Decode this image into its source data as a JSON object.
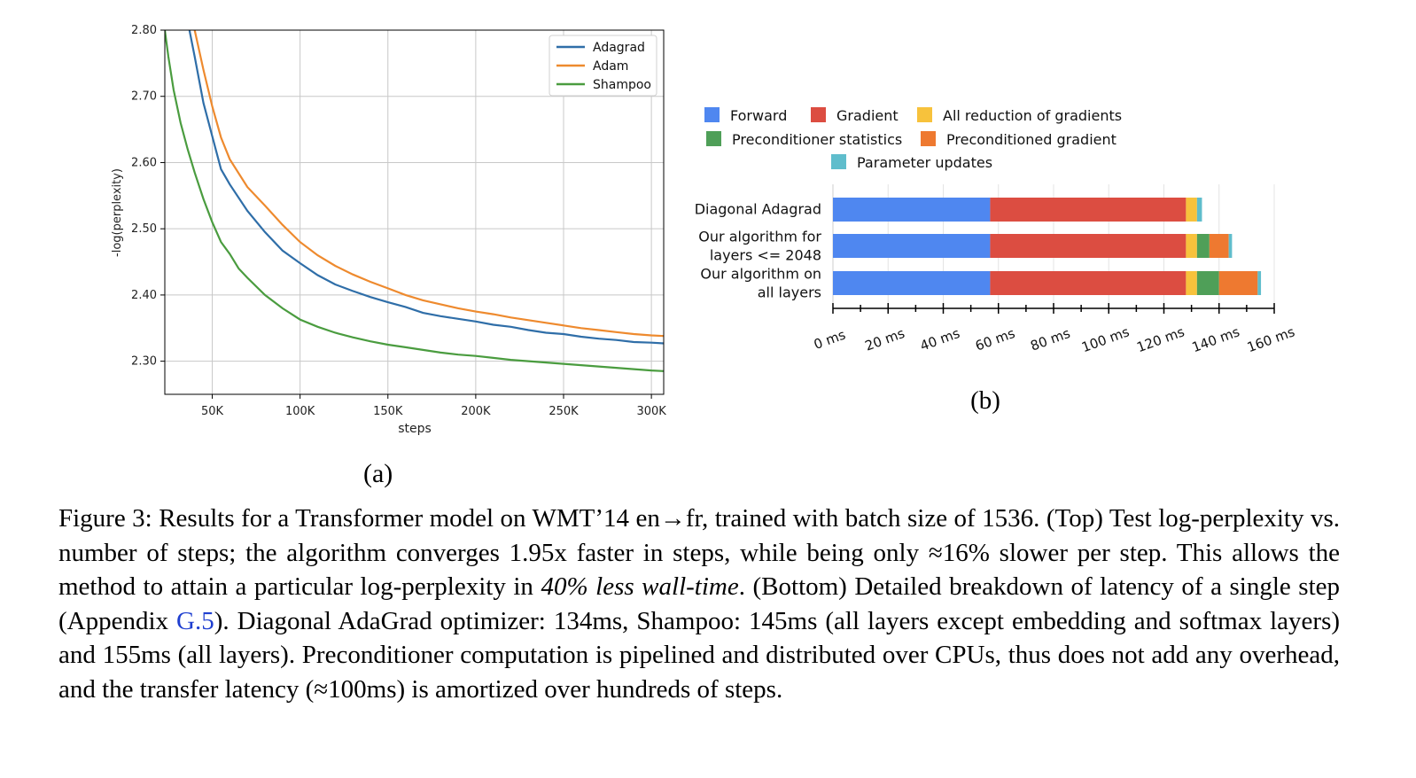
{
  "figure_a": {
    "label": "(a)",
    "chart_data": {
      "type": "line",
      "xlabel": "steps",
      "ylabel": "-log(perplexity)",
      "xlim": [
        23000,
        307000
      ],
      "ylim": [
        2.25,
        2.8
      ],
      "x_ticks": [
        50000,
        100000,
        150000,
        200000,
        250000,
        300000
      ],
      "x_tick_labels": [
        "50K",
        "100K",
        "150K",
        "200K",
        "250K",
        "300K"
      ],
      "y_ticks": [
        2.3,
        2.4,
        2.5,
        2.6,
        2.7,
        2.8
      ],
      "y_tick_labels": [
        "2.30",
        "2.40",
        "2.50",
        "2.60",
        "2.70",
        "2.80"
      ],
      "grid": true,
      "legend_position": "top-right",
      "series": [
        {
          "name": "Adagrad",
          "color": "#2f6ea8",
          "x": [
            37000,
            40000,
            45000,
            50000,
            55000,
            60000,
            70000,
            80000,
            90000,
            100000,
            110000,
            120000,
            130000,
            140000,
            150000,
            160000,
            170000,
            180000,
            190000,
            200000,
            210000,
            220000,
            230000,
            240000,
            250000,
            260000,
            270000,
            280000,
            290000,
            300000,
            307000
          ],
          "y": [
            2.8,
            2.76,
            2.69,
            2.64,
            2.59,
            2.567,
            2.527,
            2.495,
            2.467,
            2.448,
            2.43,
            2.416,
            2.406,
            2.397,
            2.389,
            2.382,
            2.373,
            2.368,
            2.364,
            2.36,
            2.355,
            2.352,
            2.347,
            2.343,
            2.341,
            2.337,
            2.334,
            2.332,
            2.329,
            2.328,
            2.327
          ]
        },
        {
          "name": "Adam",
          "color": "#ee8a2e",
          "x": [
            40000,
            45000,
            50000,
            55000,
            60000,
            70000,
            80000,
            90000,
            100000,
            110000,
            120000,
            130000,
            140000,
            150000,
            160000,
            170000,
            180000,
            190000,
            200000,
            210000,
            220000,
            230000,
            240000,
            250000,
            260000,
            270000,
            280000,
            290000,
            300000,
            307000
          ],
          "y": [
            2.8,
            2.74,
            2.685,
            2.638,
            2.605,
            2.563,
            2.535,
            2.506,
            2.48,
            2.46,
            2.444,
            2.431,
            2.42,
            2.41,
            2.4,
            2.392,
            2.386,
            2.38,
            2.375,
            2.371,
            2.366,
            2.362,
            2.358,
            2.354,
            2.35,
            2.347,
            2.344,
            2.341,
            2.339,
            2.338
          ]
        },
        {
          "name": "Shampoo",
          "color": "#4a9c3f",
          "x": [
            23000,
            25000,
            28000,
            32000,
            36000,
            40000,
            45000,
            50000,
            55000,
            60000,
            65000,
            70000,
            80000,
            90000,
            100000,
            110000,
            120000,
            130000,
            140000,
            150000,
            160000,
            170000,
            180000,
            190000,
            200000,
            210000,
            220000,
            230000,
            240000,
            250000,
            260000,
            270000,
            280000,
            290000,
            300000,
            307000
          ],
          "y": [
            2.8,
            2.76,
            2.71,
            2.66,
            2.62,
            2.585,
            2.545,
            2.51,
            2.48,
            2.462,
            2.44,
            2.426,
            2.4,
            2.38,
            2.363,
            2.352,
            2.343,
            2.336,
            2.33,
            2.325,
            2.321,
            2.317,
            2.313,
            2.31,
            2.308,
            2.305,
            2.302,
            2.3,
            2.298,
            2.296,
            2.294,
            2.292,
            2.29,
            2.288,
            2.286,
            2.285
          ]
        }
      ]
    }
  },
  "figure_b": {
    "label": "(b)",
    "chart_data": {
      "type": "bar",
      "orientation": "horizontal",
      "stacked": true,
      "xlim": [
        0,
        160
      ],
      "x_ticks": [
        0,
        20,
        40,
        60,
        80,
        100,
        120,
        140,
        160
      ],
      "x_tick_labels": [
        "0 ms",
        "20 ms",
        "40 ms",
        "60 ms",
        "80 ms",
        "100 ms",
        "120 ms",
        "140 ms",
        "160 ms"
      ],
      "legend_position": "top",
      "categories": [
        [
          "Diagonal Adagrad"
        ],
        [
          "Our algorithm for",
          "layers <= 2048"
        ],
        [
          "Our algorithm on",
          "all layers"
        ]
      ],
      "series": [
        {
          "name": "Forward",
          "color": "#4f87f0",
          "values": [
            57,
            57,
            57
          ]
        },
        {
          "name": "Gradient",
          "color": "#dc4d41",
          "values": [
            71,
            71,
            71
          ]
        },
        {
          "name": "All reduction of gradients",
          "color": "#f7c23c",
          "values": [
            4,
            4,
            4
          ]
        },
        {
          "name": "Preconditioner statistics",
          "color": "#4f9f58",
          "values": [
            0,
            4.5,
            8
          ]
        },
        {
          "name": "Preconditioned gradient",
          "color": "#ee7930",
          "values": [
            0,
            7,
            14
          ]
        },
        {
          "name": "Parameter updates",
          "color": "#5fbdcc",
          "values": [
            1.8,
            1.2,
            1.2
          ]
        }
      ]
    }
  },
  "caption": {
    "figure_label": "Figure 3:",
    "text_1": "Results for a Transformer model on WMT’14 en→fr, trained with batch size of 1536. (Top) Test log-perplexity vs. number of steps; the algorithm converges 1.95x faster in steps, while being only ≈16% slower per step. This allows the method to attain a particular log-perplexity in",
    "emphasis": "40% less wall-time",
    "text_2": ". (Bottom) Detailed breakdown of latency of a single step (Appendix",
    "link": "G.5",
    "text_3": "). Diagonal AdaGrad optimizer: 134ms, Shampoo: 145ms (all layers except embedding and softmax layers) and 155ms (all layers). Preconditioner computation is pipelined and distributed over CPUs, thus does not add any overhead, and the transfer latency (≈100ms) is amortized over hundreds of steps."
  }
}
